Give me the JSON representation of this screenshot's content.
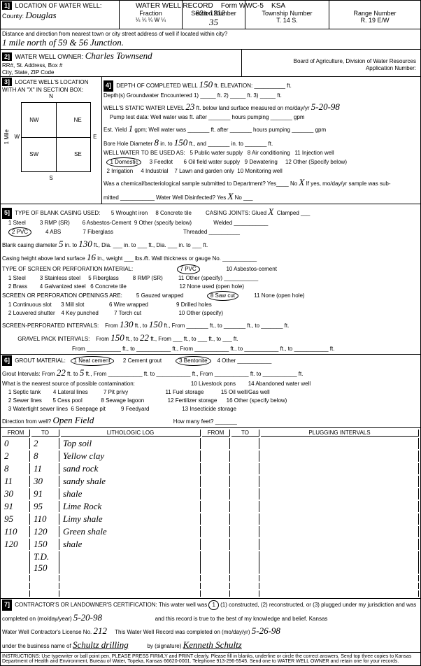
{
  "form": {
    "title": "WATER WELL RECORD",
    "form_no": "Form WWC-5",
    "ksa": "KSA 82a-1212"
  },
  "sec1": {
    "label": "LOCATION OF WATER WELL:",
    "county_label": "County:",
    "county": "Douglas",
    "fraction_label": "Fraction",
    "fraction_vals": "¼   ¼   ¼  W  ¼",
    "section_label": "Section Number",
    "section": "35",
    "township_label": "Township Number",
    "township": "T.   14   S.",
    "range_label": "Range Number",
    "range": "R.   19   E/W",
    "dist_label": "Distance and direction from nearest town or city street address of well if located within city?",
    "dist": "1 mile north of 59 & 56 Junction."
  },
  "sec2": {
    "label": "WATER WELL OWNER:",
    "owner": "Charles Townsend",
    "rr_label": "RR#, St. Address, Box #",
    "city_label": "City, State, ZIP Code",
    "board_label": "Board of Agriculture, Division of Water Resources",
    "app_label": "Application Number:"
  },
  "sec3": {
    "label": "LOCATE WELL'S LOCATION WITH AN \"X\" IN SECTION BOX:",
    "n": "N",
    "s": "S",
    "e": "E",
    "w": "W",
    "nw": "NW",
    "ne": "NE",
    "sw": "SW",
    "se": "SE",
    "mile": "1 Mile"
  },
  "sec4": {
    "label": "DEPTH OF COMPLETED WELL",
    "depth": "150",
    "ft": "ft.",
    "elev_label": "ELEVATION:",
    "depths_label": "Depth(s) Groundwater Encountered",
    "gw1": "1)",
    "gw2": "2)",
    "gw3": "3)",
    "static_label": "WELL'S STATIC WATER LEVEL",
    "static": "23",
    "static_rest": "ft. below land surface measured on mo/day/yr",
    "static_date": "5-20-98",
    "pump_label": "Pump test data:  Well water was",
    "pump_rest": "ft. after _______ hours pumping _______ gpm",
    "est_label": "Est. Yield",
    "est_yield": "1",
    "est_rest": "gpm;  Well water was _______ ft. after _______ hours pumping _______ gpm",
    "bore_label": "Bore Hole Diameter",
    "bore": "8",
    "bore_mid": "in. to",
    "bore_depth": "150",
    "bore_rest": "ft., and _______ in. to _______ ft.",
    "use_label": "WELL WATER TO BE USED AS:",
    "use1": "1 Domestic",
    "use2": "2 Irrigation",
    "use3": "3 Feedlot",
    "use4": "4 Industrial",
    "use5": "5 Public water supply",
    "use6": "6 Oil field water supply",
    "use7": "7 Lawn and garden only",
    "use8": "8 Air conditioning",
    "use9": "9 Dewatering",
    "use10": "10 Monitoring well",
    "use11": "11 Injection well",
    "use12": "12 Other (Specify below)",
    "chem_label": "Was a chemical/bacteriological sample submitted to Department? Yes____ No",
    "chem_x": "X",
    "chem_rest": "If yes, mo/day/yr sample was sub-",
    "mitted": "mitted ___________ Water Well Disinfected?  Yes",
    "dis_x": "X",
    "dis_no": "  No ___"
  },
  "sec5": {
    "label": "TYPE OF BLANK CASING USED:",
    "c1": "1 Steel",
    "c2": "2 PVC",
    "c3": "3 RMP (SR)",
    "c4": "4 ABS",
    "c5": "5 Wrought iron",
    "c6": "6 Asbestos-Cement",
    "c7": "7 Fiberglass",
    "c8": "8 Concrete tile",
    "c9": "9 Other (specify below)",
    "joints_label": "CASING JOINTS: Glued",
    "joints_x": "X",
    "joints_rest": "Clamped ___",
    "welded": "Welded ___________",
    "threaded": "Threaded __________",
    "blank_label": "Blank casing diameter",
    "blank_dia": "5",
    "blank_mid": "in. to",
    "blank_depth": "130",
    "blank_rest": "ft., Dia. ___ in. to ___ ft., Dia. ___ in. to ___ ft.",
    "height_label": "Casing height above land surface",
    "height": "16",
    "height_rest": "in., weight ___ lbs./ft. Wall thickness or gauge No. ___________",
    "screen_label": "TYPE OF SCREEN OR PERFORATION MATERIAL:",
    "s1": "1 Steel",
    "s2": "2 Brass",
    "s3": "3 Stainless steel",
    "s4": "4 Galvanized steel",
    "s5": "5 Fiberglass",
    "s6": "6 Concrete tile",
    "s7": "7 PVC",
    "s8": "8 RMP (SR)",
    "s10": "10 Asbestos-cement",
    "s11": "11 Other (specify) ___________",
    "s12": "12 None used (open hole)",
    "open_label": "SCREEN OR PERFORATION OPENINGS ARE:",
    "o1": "1 Continuous slot",
    "o2": "2 Louvered shutter",
    "o3": "3 Mill slot",
    "o4": "4 Key punched",
    "o5": "5 Gauzed wrapped",
    "o6": "6 Wire wrapped",
    "o7": "7 Torch cut",
    "o8": "8 Saw cut",
    "o9": "9 Drilled holes",
    "o10": "10 Other (specify)",
    "o11": "11 None (open hole)",
    "perf_label": "SCREEN-PERFORATED INTERVALS:",
    "perf_from": "From",
    "perf_to": "ft., to",
    "perf_f1": "130",
    "perf_t1": "150",
    "perf_rest": "ft., From _______ ft., to _______ ft., to _______ ft.",
    "gravel_label": "GRAVEL PACK INTERVALS:",
    "gravel_f1": "150",
    "gravel_t1": "22",
    "gravel_rest": "ft., From ___  ft., to ___ ft., to ___ ft.",
    "gravel2": "From ___________ ft., to ___________ ft., From ___________ ft., to ___________ ft., to ___________ ft."
  },
  "sec6": {
    "label": "GROUT MATERIAL:",
    "g1": "1 Neat cement",
    "g2": "2 Cement grout",
    "g3": "3 Bentonite",
    "g4": "4 Other ___________",
    "gi_label": "Grout Intervals:  From",
    "gi_f": "22",
    "gi_mid": "ft. to",
    "gi_t": "5",
    "gi_rest": "ft., From ___________ ft. to ___________ ft., From ___________ ft. to ___________ ft.",
    "source_label": "What is the nearest source of possible contamination:",
    "p1": "1 Septic tank",
    "p2": "2 Sewer lines",
    "p3": "3 Watertight sewer lines",
    "p4": "4 Lateral lines",
    "p5": "5 Cess pool",
    "p6": "6 Seepage pit",
    "p7": "7 Pit privy",
    "p8": "8 Sewage lagoon",
    "p9": "9 Feedyard",
    "p10": "10 Livestock pons",
    "p11": "11 Fuel storage",
    "p12": "12 Fertilizer storage",
    "p13": "13 Insecticide storage",
    "p14": "14 Abandoned water well",
    "p15": "15 Oil well/Gas well",
    "p16": "16 Other (specify below)",
    "dir_label": "Direction from well?",
    "dir": "Open Field",
    "how_label": "How many feet? _______"
  },
  "log": {
    "from": "FROM",
    "to": "TO",
    "lith": "LITHOLOGIC LOG",
    "plug": "PLUGGING INTERVALS",
    "rows": [
      {
        "f": "0",
        "t": "2",
        "d": "Top soil"
      },
      {
        "f": "2",
        "t": "8",
        "d": "Yellow clay"
      },
      {
        "f": "8",
        "t": "11",
        "d": "sand rock"
      },
      {
        "f": "11",
        "t": "30",
        "d": "sandy shale"
      },
      {
        "f": "30",
        "t": "91",
        "d": "shale"
      },
      {
        "f": "91",
        "t": "95",
        "d": "Lime Rock"
      },
      {
        "f": "95",
        "t": "110",
        "d": "Limy shale"
      },
      {
        "f": "110",
        "t": "120",
        "d": "Green shale"
      },
      {
        "f": "120",
        "t": "150",
        "d": "shale"
      }
    ],
    "td": "T.D.",
    "td_val": "150"
  },
  "sec7": {
    "label": "CONTRACTOR'S OR LANDOWNER'S CERTIFICATION: This water well was",
    "c1": "(1) constructed, (2) reconstructed, or (3) plugged under my jurisdiction and was",
    "comp_label": "completed on (mo/day/year)",
    "comp_date": "5-20-98",
    "comp_rest": "and this record is true to the best of my knowledge and belief. Kansas",
    "lic_label": "Water Well Contractor's License No.",
    "lic": "212",
    "lic_mid": "This Water Well Record was completed on (mo/day/yr)",
    "lic_date": "5-26-98",
    "bus_label": "under the business name of",
    "bus": "Schultz drilling",
    "sig_label": "by (signature)",
    "sig": "Kenneth Schultz"
  },
  "instructions": "INSTRUCTIONS: Use typewriter or ball point pen. PLEASE PRESS FIRMLY and PRINT clearly. Please fill in blanks, underline or circle the correct answers. Send top three copies to Kansas Department of Health and Environment, Bureau of Water, Topeka, Kansas 66620-0001. Telephone 913-296-5545. Send one to WATER WELL OWNER and retain one for your records.",
  "colors": {
    "bg": "#ffffff",
    "fg": "#000000"
  }
}
